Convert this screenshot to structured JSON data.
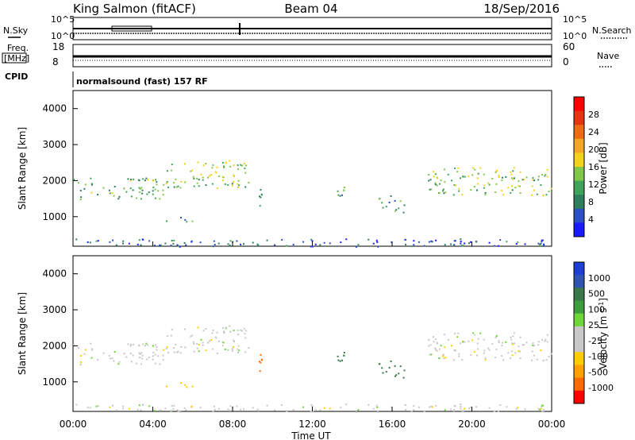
{
  "header": {
    "title": "King Salmon (fitACF)",
    "beam": "Beam 04",
    "date": "18/Sep/2016"
  },
  "param_panels": {
    "nsky_label": "N.Sky",
    "nsearch_label": "N.Search",
    "noise_ticks": [
      "10^5",
      "10^0"
    ],
    "freq_label_line1": "Freq.",
    "freq_label_line2": "[MHz]",
    "freq_ticks": [
      "18",
      "8"
    ],
    "nave_label": "Nave",
    "nave_ticks": [
      "60",
      "0"
    ],
    "cpid_label": "CPID",
    "program_name": "normalsound (fast) 157 RF"
  },
  "axes": {
    "xlabel": "Time UT",
    "ylabel_prefix": "Slant Range ",
    "ylabel_unit": "[km]",
    "x_tick_labels": [
      "00:00",
      "04:00",
      "08:00",
      "12:00",
      "16:00",
      "20:00",
      "00:00"
    ],
    "y_tick_labels": [
      "4000",
      "3000",
      "2000",
      "1000"
    ]
  },
  "colorbars": {
    "power": {
      "label": "Power [dB]",
      "tick_labels": [
        "28",
        "24",
        "20",
        "16",
        "12",
        "8",
        "4"
      ],
      "colors": [
        "#1a1aff",
        "#2b4fc4",
        "#2e7d5b",
        "#3fa35a",
        "#7fc84a",
        "#f2d21a",
        "#f5a623",
        "#ee6a14",
        "#e63312",
        "#ff0000"
      ]
    },
    "velocity": {
      "label_main": "Velocity ",
      "label_unit": "[m s",
      "label_exp": "-1",
      "label_close": "]",
      "tick_labels": [
        "1000",
        "500",
        "100",
        "25",
        "-25",
        "-100",
        "-500",
        "-1000"
      ],
      "colors": [
        "#1d3fd8",
        "#2f55b0",
        "#3a7a4a",
        "#3e9e3e",
        "#6fd63a",
        "#c8c8c8",
        "#c8c8c8",
        "#ffcc00",
        "#ff9f00",
        "#ff6a00",
        "#ff0000"
      ]
    }
  },
  "chart_data": {
    "type": "heatmap",
    "title": "King Salmon (fitACF)",
    "xlabel": "Time UT",
    "ylabel": "Slant Range [km]",
    "xlim_hours": [
      0,
      24
    ],
    "ylim_km": [
      180,
      4500
    ],
    "regions": [
      {
        "t": [
          0.0,
          4.5
        ],
        "r": [
          1500,
          2100
        ],
        "power": 12,
        "velocity": 0
      },
      {
        "t": [
          4.5,
          8.8
        ],
        "r": [
          1800,
          2600
        ],
        "power": 14,
        "velocity": 0
      },
      {
        "t": [
          4.5,
          6.0
        ],
        "r": [
          850,
          1000
        ],
        "power": 8,
        "velocity": -50
      },
      {
        "t": [
          9.0,
          9.5
        ],
        "r": [
          1300,
          1800
        ],
        "power": 8,
        "velocity": -300
      },
      {
        "t": [
          13.2,
          14.0
        ],
        "r": [
          1500,
          1900
        ],
        "power": 10,
        "velocity": 150
      },
      {
        "t": [
          15.3,
          16.6
        ],
        "r": [
          1100,
          1600
        ],
        "power": 10,
        "velocity": 150
      },
      {
        "t": [
          17.8,
          24.0
        ],
        "r": [
          1600,
          2400
        ],
        "power": 14,
        "velocity": 0
      },
      {
        "t": [
          0.0,
          24.0
        ],
        "r": [
          180,
          400
        ],
        "power": 6,
        "velocity": 0
      }
    ]
  }
}
